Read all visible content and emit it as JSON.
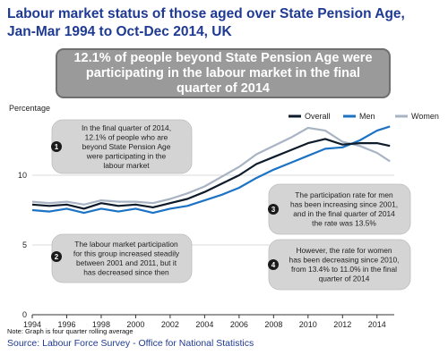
{
  "title_line1": "Labour market status of those aged over State Pension Age,",
  "title_line2": "Jan-Mar 1994 to Oct-Dec 2014, UK",
  "banner_line1": "12.1% of people beyond State Pension Age were",
  "banner_line2": "participating in the labour market in the final",
  "banner_line3": "quarter of 2014",
  "footnote": "Note: Graph is four quarter rolling average",
  "source": "Source: Labour Force Survey - Office for National Statistics",
  "colors": {
    "overall": "#0d1b2a",
    "men": "#1c73c4",
    "women": "#a8b4c3",
    "callout_bg": "#d4d4d4",
    "title": "#1f3a93"
  },
  "annotations": [
    {
      "num": "1",
      "lines": [
        "In the final quarter of 2014,",
        "12.1% of people who are",
        "beyond State Pension Age",
        "were participating in the",
        "labour market"
      ]
    },
    {
      "num": "2",
      "lines": [
        "The labour market participation",
        "for this group increased steadily",
        "between 2001 and 2011, but it",
        "has decreased since then"
      ]
    },
    {
      "num": "3",
      "lines": [
        "The participation rate for men",
        "has been increasing since 2001,",
        "and in the final quarter of 2014",
        "the rate was 13.5%"
      ]
    },
    {
      "num": "4",
      "lines": [
        "However, the rate for women",
        "has been decreasing since 2010,",
        "from 13.4% to 11.0% in the final",
        "quarter of 2014"
      ]
    }
  ],
  "chart_data": {
    "type": "line",
    "ylabel": "Percentage",
    "xlabel": "",
    "ylim": [
      0,
      15
    ],
    "xlim": [
      1994,
      2015
    ],
    "yticks": [
      0,
      5,
      10
    ],
    "xticks": [
      "1994",
      "1996",
      "1998",
      "2000",
      "2002",
      "2004",
      "2006",
      "2008",
      "2010",
      "2012",
      "2014"
    ],
    "legend_position": "top-right",
    "series": [
      {
        "name": "Overall",
        "x": [
          1994,
          1995,
          1996,
          1997,
          1998,
          1999,
          2000,
          2001,
          2002,
          2003,
          2004,
          2005,
          2006,
          2007,
          2008,
          2009,
          2010,
          2011,
          2012,
          2013,
          2014,
          2014.75
        ],
        "values": [
          7.9,
          7.8,
          7.9,
          7.6,
          8.0,
          7.8,
          7.9,
          7.7,
          8.0,
          8.3,
          8.8,
          9.4,
          10.0,
          10.8,
          11.3,
          11.8,
          12.3,
          12.6,
          12.2,
          12.3,
          12.3,
          12.1
        ]
      },
      {
        "name": "Men",
        "x": [
          1994,
          1995,
          1996,
          1997,
          1998,
          1999,
          2000,
          2001,
          2002,
          2003,
          2004,
          2005,
          2006,
          2007,
          2008,
          2009,
          2010,
          2011,
          2012,
          2013,
          2014,
          2014.75
        ],
        "values": [
          7.5,
          7.4,
          7.6,
          7.3,
          7.6,
          7.4,
          7.6,
          7.3,
          7.6,
          7.8,
          8.2,
          8.6,
          9.1,
          9.8,
          10.4,
          10.9,
          11.4,
          11.9,
          12.0,
          12.5,
          13.2,
          13.5
        ]
      },
      {
        "name": "Women",
        "x": [
          1994,
          1995,
          1996,
          1997,
          1998,
          1999,
          2000,
          2001,
          2002,
          2003,
          2004,
          2005,
          2006,
          2007,
          2008,
          2009,
          2010,
          2011,
          2012,
          2013,
          2014,
          2014.75
        ],
        "values": [
          8.1,
          8.0,
          8.1,
          7.9,
          8.2,
          8.1,
          8.1,
          8.0,
          8.3,
          8.7,
          9.2,
          9.9,
          10.6,
          11.5,
          12.1,
          12.7,
          13.4,
          13.2,
          12.4,
          12.1,
          11.6,
          11.0
        ]
      }
    ]
  }
}
